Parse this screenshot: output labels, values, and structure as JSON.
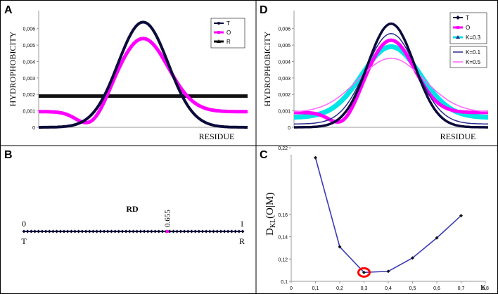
{
  "colors": {
    "T": "#0b0b3b",
    "O": "#ff00ff",
    "R": "#111111",
    "K01": "#2a2a8a",
    "K03": "#00e5e5",
    "K05": "#ff66ff",
    "kl_line": "#3b3bb5",
    "highlight": "#ff0000"
  },
  "panels": {
    "A": {
      "letter": "A",
      "ylabel": "HYDROPHOBICITY",
      "xlabel": "RESIDUE",
      "yticks": [
        "0",
        "0,001",
        "0,002",
        "0,003",
        "0,004",
        "0,005",
        "0,006"
      ],
      "legend": [
        "T",
        "O",
        "R"
      ]
    },
    "B": {
      "letter": "B",
      "title": "RD",
      "left_value": "0",
      "right_value": "1",
      "left_label": "T",
      "right_label": "R",
      "marker_label": "0.655"
    },
    "C": {
      "letter": "C",
      "ylabel_main": "D",
      "ylabel_sub": "KL",
      "ylabel_tail": "(O|M)",
      "xlabel": "K",
      "yticks": [
        "0,1",
        "0,12",
        "0,14",
        "0,16",
        "0,22"
      ],
      "xticks": [
        "0",
        "0,1",
        "0,2",
        "0,3",
        "0,4",
        "0,5",
        "0,6",
        "0,7",
        "0,8"
      ]
    },
    "D": {
      "letter": "D",
      "ylabel": "HYDROPHOBICITY",
      "xlabel": "RESIDUE",
      "yticks": [
        "0",
        "0,001",
        "0,002",
        "0,003",
        "0,004",
        "0,005",
        "0,006"
      ],
      "legend1": [
        "T",
        "O",
        "K=0.3"
      ],
      "legend2": [
        "K=0.1",
        "K=0.5"
      ]
    }
  },
  "chart_data": [
    {
      "panel": "A",
      "type": "line",
      "xlabel": "RESIDUE",
      "ylabel": "HYDROPHOBICITY",
      "ylim": [
        0,
        0.0068
      ],
      "series": [
        {
          "name": "T",
          "peak": 0.0064,
          "center": 0.5,
          "width": 0.12,
          "base": 0.0
        },
        {
          "name": "O",
          "peak": 0.0054,
          "center": 0.5,
          "width": 0.12,
          "base": 0.00095,
          "dip": 0.0
        },
        {
          "name": "R",
          "constant": 0.0019
        }
      ]
    },
    {
      "panel": "B",
      "type": "scatter",
      "title": "RD",
      "xlim": [
        0,
        1
      ],
      "marker": 0.655
    },
    {
      "panel": "C",
      "type": "line",
      "xlabel": "K",
      "ylabel": "DKL(O|M)",
      "xlim": [
        0,
        0.8
      ],
      "ylim": [
        0.1,
        0.22
      ],
      "x": [
        0.1,
        0.2,
        0.3,
        0.4,
        0.5,
        0.6,
        0.7
      ],
      "y": [
        0.211,
        0.131,
        0.108,
        0.109,
        0.121,
        0.139,
        0.159
      ],
      "highlight_x": 0.3
    },
    {
      "panel": "D",
      "type": "line",
      "xlabel": "RESIDUE",
      "ylabel": "HYDROPHOBICITY",
      "ylim": [
        0,
        0.0068
      ],
      "series": [
        {
          "name": "T",
          "peak": 0.0063,
          "base": 0.0
        },
        {
          "name": "O",
          "peak": 0.0053,
          "base": 0.0009
        },
        {
          "name": "K=0.3",
          "peak": 0.0049,
          "base": 0.0006
        },
        {
          "name": "K=0.1",
          "peak": 0.0057,
          "base": 0.0002
        },
        {
          "name": "K=0.5",
          "peak": 0.0042,
          "base": 0.0009
        }
      ]
    }
  ]
}
